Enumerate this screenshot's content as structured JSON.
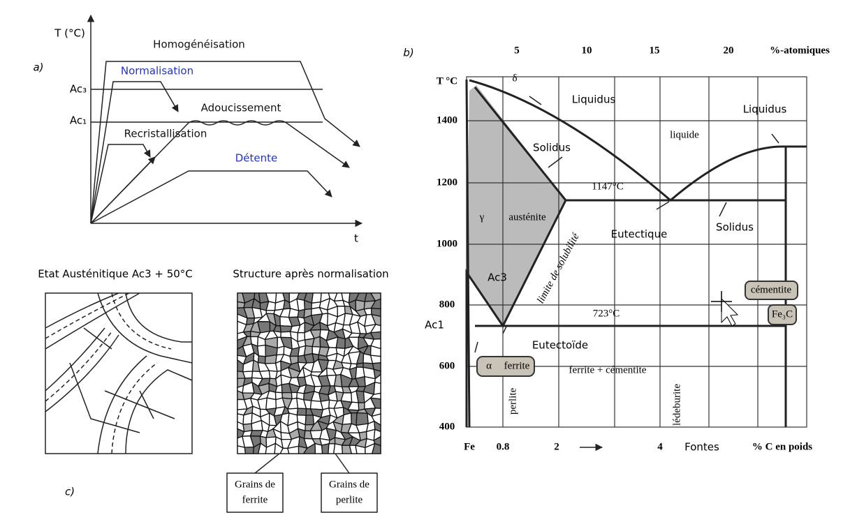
{
  "panel_a": {
    "label": "a)",
    "y_axis": "T (°C)",
    "x_axis": "t",
    "levels": [
      "Ac₃",
      "Ac₁"
    ],
    "treatments": [
      "Homogénéisation",
      "Normalisation",
      "Adoucissement",
      "Recristallisation",
      "Détente"
    ]
  },
  "panel_b": {
    "label": "b)",
    "top_scale": [
      "5",
      "10",
      "15",
      "20",
      "%-atomiques"
    ],
    "temp_axis": [
      "T °C",
      "1400",
      "1200",
      "1000",
      "800",
      "600",
      "400"
    ],
    "bottom_scale": [
      "Fe",
      "0.8",
      "2",
      "4",
      "Fontes",
      "% C en poids"
    ],
    "annotations": [
      "δ",
      "Liquidus",
      "Liquidus",
      "liquide",
      "Solidus",
      "1147°C",
      "γ",
      "austénite",
      "limite de solubilité",
      "Eutectique",
      "Solidus",
      "Ac3",
      "Ac1",
      "723°C",
      "Eutectoïde",
      "α",
      "ferrite",
      "ferrite + cémentite",
      "perlite",
      "lédeburite",
      "cémentite",
      "Fe₃C"
    ]
  },
  "panel_c": {
    "label": "c)",
    "left_title": "Etat Austénitique Ac3 + 50°C",
    "right_title": "Structure après normalisation",
    "callouts": [
      [
        "Grains de",
        "ferrite"
      ],
      [
        "Grains de",
        "perlite"
      ]
    ]
  }
}
